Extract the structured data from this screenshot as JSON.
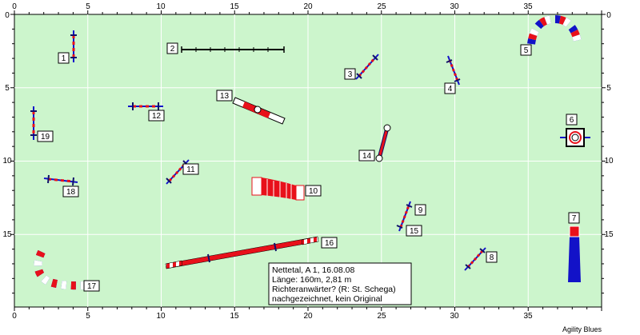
{
  "axes": {
    "x_ticks": [
      "0",
      "5",
      "10",
      "15",
      "20",
      "25",
      "30",
      "35"
    ],
    "y_ticks": [
      "0",
      "5",
      "10",
      "15"
    ]
  },
  "obstacles": [
    {
      "label": "1",
      "kind": "jump"
    },
    {
      "label": "2",
      "kind": "wall-jump"
    },
    {
      "label": "3",
      "kind": "jump"
    },
    {
      "label": "4",
      "kind": "jump"
    },
    {
      "label": "5",
      "kind": "tunnel"
    },
    {
      "label": "6",
      "kind": "table"
    },
    {
      "label": "7",
      "kind": "a-frame"
    },
    {
      "label": "8",
      "kind": "jump"
    },
    {
      "label": "9",
      "kind": "jump"
    },
    {
      "label": "10",
      "kind": "tunnel"
    },
    {
      "label": "11",
      "kind": "jump"
    },
    {
      "label": "12",
      "kind": "jump"
    },
    {
      "label": "13",
      "kind": "seesaw"
    },
    {
      "label": "14",
      "kind": "tire"
    },
    {
      "label": "15",
      "kind": "jump"
    },
    {
      "label": "16",
      "kind": "dog-walk"
    },
    {
      "label": "17",
      "kind": "tunnel"
    },
    {
      "label": "18",
      "kind": "jump"
    },
    {
      "label": "19",
      "kind": "jump"
    }
  ],
  "info": {
    "line1": "Nettetal, A 1, 16.08.08",
    "line2": "Länge: 160m, 2,81 m",
    "line3": "Richteranwärter? (R: St. Schega)",
    "line4": "nachgezeichnet, kein Original"
  },
  "footer": "Agility Blues",
  "colors": {
    "field": "#ccf5cc",
    "grid": "#ffffff",
    "red": "#e8101a",
    "blue": "#1212c8",
    "dark_blue": "#10106a"
  }
}
